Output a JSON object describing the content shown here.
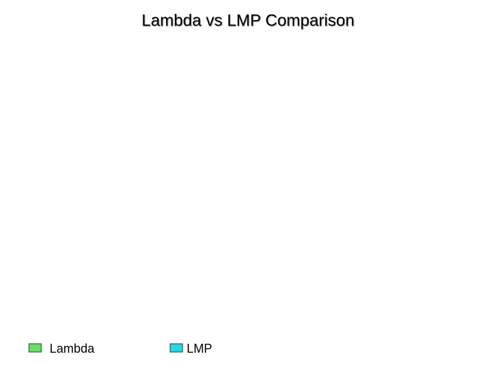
{
  "chart_data": {
    "type": "line",
    "title": "Lambda vs LMP Comparison",
    "series": [
      {
        "name": "Lambda",
        "color": "#66e066",
        "values": []
      },
      {
        "name": "LMP",
        "color": "#22d8e6",
        "values": []
      }
    ],
    "legend": "bottom"
  }
}
